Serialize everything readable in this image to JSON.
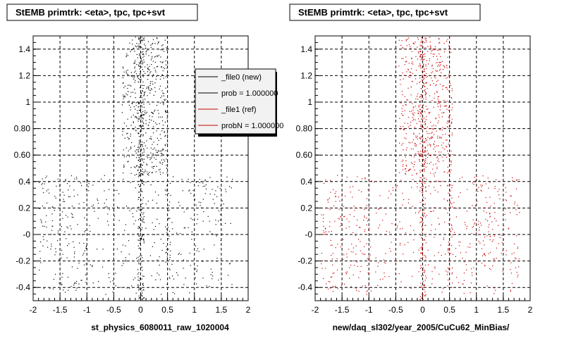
{
  "chart_data": [
    {
      "type": "scatter",
      "title": "StEMB primtrk: <eta>, tpc, tpc+svt",
      "xlabel": "st_physics_6080011_raw_1020004",
      "ylabel": "",
      "xlim": [
        -2,
        2
      ],
      "ylim": [
        -0.5,
        1.5
      ],
      "x_ticks": [
        "-2",
        "-1.5",
        "-1",
        "-0.5",
        "0",
        "0.5",
        "1",
        "1.5",
        "2"
      ],
      "x_tick_values": [
        -2,
        -1.5,
        -1,
        -0.5,
        0,
        0.5,
        1,
        1.5,
        2
      ],
      "y_ticks": [
        "-0.4",
        "-0.2",
        "-0",
        "0.2",
        "0.4",
        "0.60",
        "0.80",
        "1",
        "1.2",
        "1.4"
      ],
      "y_tick_values": [
        -0.4,
        -0.2,
        0,
        0.2,
        0.4,
        0.6,
        0.8,
        1.0,
        1.2,
        1.4
      ],
      "grid": true,
      "legend_position": "top-right",
      "legend": [
        {
          "label": "_file0 (new)",
          "color": "#000000"
        },
        {
          "label": "prob = 1.000000",
          "color": "#000000"
        },
        {
          "label": "_file1 (ref)",
          "color": "#cc0000"
        },
        {
          "label": "probN = 1.000000",
          "color": "#cc0000"
        }
      ],
      "series": [
        {
          "color": "#000000",
          "clusters": [
            {
              "x": [
                -0.35,
                0.5
              ],
              "y": [
                0.45,
                1.5
              ],
              "n": 500
            },
            {
              "x": [
                -0.06,
                0.06
              ],
              "y": [
                -0.5,
                1.5
              ],
              "n": 260
            },
            {
              "x": [
                -1.9,
                1.7
              ],
              "y": [
                -0.45,
                0.45
              ],
              "n": 300
            },
            {
              "x": [
                -1.9,
                -1.0
              ],
              "y": [
                -0.45,
                0.45
              ],
              "n": 80
            },
            {
              "x": [
                0.9,
                1.7
              ],
              "y": [
                0.0,
                0.45
              ],
              "n": 40
            },
            {
              "x": [
                0.45,
                0.55
              ],
              "y": [
                -0.4,
                0.4
              ],
              "n": 40
            }
          ]
        }
      ]
    },
    {
      "type": "scatter",
      "title": "StEMB primtrk: <eta>, tpc, tpc+svt",
      "xlabel": "new/daq_sl302/year_2005/CuCu62_MinBias/",
      "ylabel": "",
      "xlim": [
        -2,
        2
      ],
      "ylim": [
        -0.5,
        1.5
      ],
      "x_ticks": [
        "-2",
        "-1.5",
        "-1",
        "-0.5",
        "0",
        "0.5",
        "1",
        "1.5",
        "2"
      ],
      "x_tick_values": [
        -2,
        -1.5,
        -1,
        -0.5,
        0,
        0.5,
        1,
        1.5,
        2
      ],
      "y_ticks": [
        "-0.4",
        "-0.2",
        "-0",
        "0.2",
        "0.4",
        "0.60",
        "0.80",
        "1",
        "1.2",
        "1.4"
      ],
      "y_tick_values": [
        -0.4,
        -0.2,
        0,
        0.2,
        0.4,
        0.6,
        0.8,
        1.0,
        1.2,
        1.4
      ],
      "grid": true,
      "series": [
        {
          "color": "#cc0000",
          "clusters": [
            {
              "x": [
                -0.45,
                0.55
              ],
              "y": [
                0.45,
                1.5
              ],
              "n": 520
            },
            {
              "x": [
                -0.06,
                0.06
              ],
              "y": [
                -0.5,
                1.5
              ],
              "n": 260
            },
            {
              "x": [
                -1.9,
                1.8
              ],
              "y": [
                -0.45,
                0.45
              ],
              "n": 380
            },
            {
              "x": [
                -1.9,
                -1.0
              ],
              "y": [
                -0.45,
                0.45
              ],
              "n": 90
            },
            {
              "x": [
                0.9,
                1.8
              ],
              "y": [
                -0.2,
                0.45
              ],
              "n": 70
            },
            {
              "x": [
                0.45,
                0.55
              ],
              "y": [
                -0.4,
                0.4
              ],
              "n": 40
            }
          ]
        }
      ]
    }
  ]
}
